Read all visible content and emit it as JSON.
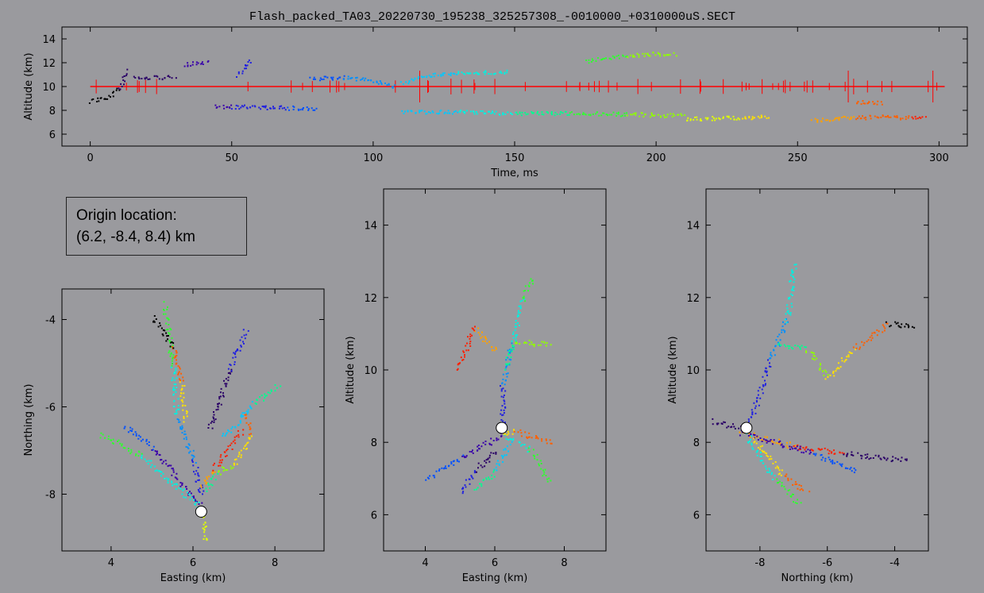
{
  "title": "Flash_packed_TA03_20220730_195238_325257308_-0010000_+0310000uS.SECT",
  "origin": {
    "label": "Origin location:",
    "value": "(6.2, -8.4, 8.4) km"
  },
  "colors": {
    "background": "#9a9a9e",
    "axis": "#000000",
    "reference_line": "#ff0000",
    "origin_marker": "#ffffff"
  },
  "chart_data": [
    {
      "id": "time-altitude",
      "type": "scatter",
      "title": "Flash_packed_TA03_20220730_195238_325257308_-0010000_+0310000uS.SECT",
      "xlabel": "Time, ms",
      "ylabel": "Altitude (km)",
      "xlim": [
        -10,
        310
      ],
      "ylim": [
        5,
        15
      ],
      "xticks": [
        0,
        50,
        100,
        150,
        200,
        250,
        300
      ],
      "yticks": [
        6,
        8,
        10,
        12,
        14
      ],
      "color_by": "time",
      "reference_line": {
        "y": 10.0,
        "color": "red"
      },
      "series": [
        {
          "x": [
            0,
            4,
            8,
            11,
            13
          ],
          "y": [
            8.8,
            9.0,
            9.3,
            10.2,
            11.5
          ]
        },
        {
          "x": [
            15,
            22,
            30
          ],
          "y": [
            10.9,
            10.8,
            10.8
          ]
        },
        {
          "x": [
            33,
            42
          ],
          "y": [
            11.9,
            12.1
          ]
        },
        {
          "x": [
            44,
            60,
            80
          ],
          "y": [
            8.4,
            8.3,
            8.2
          ]
        },
        {
          "x": [
            52,
            57
          ],
          "y": [
            11.0,
            12.3
          ]
        },
        {
          "x": [
            78,
            90,
            100,
            108
          ],
          "y": [
            10.7,
            10.8,
            10.5,
            10.0
          ]
        },
        {
          "x": [
            110,
            120,
            135,
            148
          ],
          "y": [
            10.3,
            11.0,
            11.2,
            11.3
          ]
        },
        {
          "x": [
            110,
            130,
            150,
            175,
            210
          ],
          "y": [
            7.9,
            7.9,
            7.8,
            7.8,
            7.6
          ]
        },
        {
          "x": [
            175,
            190,
            200,
            207
          ],
          "y": [
            12.2,
            12.6,
            12.8,
            12.8
          ]
        },
        {
          "x": [
            210,
            225,
            240
          ],
          "y": [
            7.3,
            7.4,
            7.5
          ]
        },
        {
          "x": [
            255,
            265,
            280,
            295
          ],
          "y": [
            7.2,
            7.4,
            7.5,
            7.4
          ]
        },
        {
          "x": [
            270,
            275,
            280
          ],
          "y": [
            8.7,
            8.7,
            8.7
          ]
        }
      ]
    },
    {
      "id": "plan-view",
      "type": "scatter",
      "xlabel": "Easting (km)",
      "ylabel": "Northing (km)",
      "xlim": [
        2.8,
        9.2
      ],
      "ylim": [
        -9.3,
        -3.3
      ],
      "xticks": [
        4,
        6,
        8
      ],
      "yticks": [
        -4,
        -6,
        -8
      ],
      "origin": {
        "x": 6.2,
        "y": -8.4
      },
      "series": [
        {
          "x": [
            6.2,
            6.0,
            5.6,
            5.5,
            5.3
          ],
          "y": [
            -8.0,
            -7.2,
            -6.2,
            -5.0,
            -3.6
          ]
        },
        {
          "x": [
            6.3,
            6.6,
            7.0,
            7.4,
            7.3
          ],
          "y": [
            -7.9,
            -7.5,
            -7.3,
            -6.6,
            -6.1
          ]
        },
        {
          "x": [
            6.2,
            6.5,
            7.2
          ],
          "y": [
            -7.8,
            -7.4,
            -6.5
          ]
        },
        {
          "x": [
            6.2,
            5.0,
            4.3
          ],
          "y": [
            -8.3,
            -6.9,
            -6.4
          ]
        },
        {
          "x": [
            6.2,
            4.7,
            3.7
          ],
          "y": [
            -8.3,
            -7.1,
            -6.6
          ]
        },
        {
          "x": [
            5.8,
            5.7,
            5.5,
            5.0
          ],
          "y": [
            -6.3,
            -5.4,
            -4.6,
            -3.9
          ]
        },
        {
          "x": [
            6.4,
            6.9,
            7.3
          ],
          "y": [
            -6.5,
            -5.1,
            -4.2
          ]
        },
        {
          "x": [
            6.7,
            7.5,
            8.1
          ],
          "y": [
            -6.7,
            -5.9,
            -5.5
          ]
        },
        {
          "x": [
            6.2,
            6.3
          ],
          "y": [
            -8.4,
            -9.1
          ]
        }
      ]
    },
    {
      "id": "east-altitude",
      "type": "scatter",
      "xlabel": "Easting (km)",
      "ylabel": "Altitude (km)",
      "xlim": [
        2.8,
        9.2
      ],
      "ylim": [
        5,
        15
      ],
      "xticks": [
        4,
        6,
        8
      ],
      "yticks": [
        6,
        8,
        10,
        12,
        14
      ],
      "origin": {
        "x": 6.2,
        "y": 8.4
      },
      "series": [
        {
          "x": [
            6.2,
            6.2,
            6.5,
            6.8,
            7.1
          ],
          "y": [
            8.4,
            9.6,
            10.8,
            12.0,
            12.6
          ]
        },
        {
          "x": [
            6.3,
            6.6,
            7.6
          ],
          "y": [
            10.1,
            10.8,
            10.7
          ]
        },
        {
          "x": [
            6.0,
            5.4,
            4.9
          ],
          "y": [
            10.5,
            11.2,
            10.0
          ]
        },
        {
          "x": [
            6.2,
            5.0,
            4.0
          ],
          "y": [
            8.2,
            7.6,
            7.0
          ]
        },
        {
          "x": [
            6.3,
            7.0,
            7.6
          ],
          "y": [
            8.2,
            7.8,
            6.9
          ]
        },
        {
          "x": [
            6.2,
            6.6,
            7.7
          ],
          "y": [
            8.3,
            8.3,
            8.0
          ]
        },
        {
          "x": [
            6.0,
            5.4,
            5.0
          ],
          "y": [
            7.8,
            7.2,
            6.6
          ]
        },
        {
          "x": [
            6.4,
            6.0,
            5.4
          ],
          "y": [
            8.0,
            7.2,
            6.7
          ]
        }
      ]
    },
    {
      "id": "north-altitude",
      "type": "scatter",
      "xlabel": "Northing (km)",
      "ylabel": "Altitude (km)",
      "xlim": [
        -9.6,
        -3.0
      ],
      "ylim": [
        5,
        15
      ],
      "xticks": [
        -8,
        -6,
        -4
      ],
      "yticks": [
        6,
        8,
        10,
        12,
        14
      ],
      "origin": {
        "x": -8.4,
        "y": 8.4
      },
      "series": [
        {
          "x": [
            -8.3,
            -7.7,
            -7.2,
            -7.0
          ],
          "y": [
            8.6,
            10.3,
            11.4,
            13.0
          ]
        },
        {
          "x": [
            -7.5,
            -6.6,
            -6.0,
            -5.2,
            -4.2,
            -3.4
          ],
          "y": [
            10.7,
            10.6,
            9.8,
            10.6,
            11.3,
            11.2
          ]
        },
        {
          "x": [
            -8.6,
            -7.0,
            -5.5,
            -3.6
          ],
          "y": [
            8.3,
            7.9,
            7.7,
            7.5
          ]
        },
        {
          "x": [
            -8.6,
            -6.4,
            -5.1
          ],
          "y": [
            8.3,
            7.7,
            7.2
          ]
        },
        {
          "x": [
            -8.4,
            -7.6,
            -6.8
          ],
          "y": [
            8.2,
            7.0,
            6.3
          ]
        },
        {
          "x": [
            -8.2,
            -7.3,
            -6.6
          ],
          "y": [
            8.1,
            7.1,
            6.6
          ]
        },
        {
          "x": [
            -9.4,
            -8.6
          ],
          "y": [
            8.6,
            8.4
          ]
        }
      ]
    }
  ]
}
